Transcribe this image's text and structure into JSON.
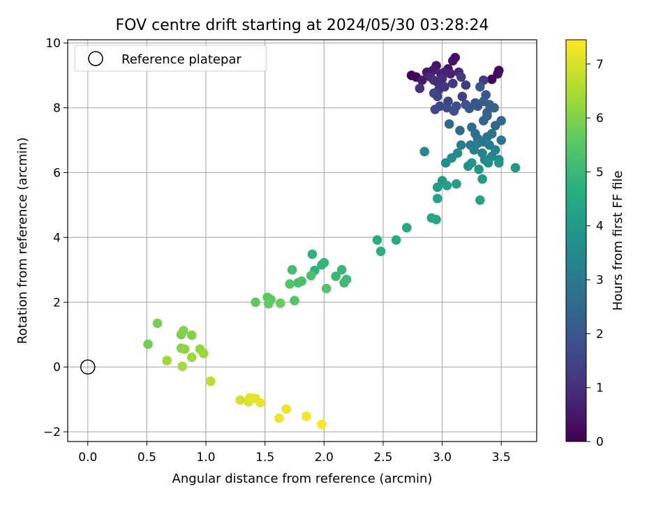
{
  "chart_data": {
    "type": "scatter",
    "title": "FOV centre drift starting at 2024/05/30 03:28:24",
    "xlabel": "Angular distance from reference (arcmin)",
    "ylabel": "Rotation from reference (arcmin)",
    "xlim": [
      -0.17,
      3.8
    ],
    "ylim": [
      -2.3,
      10.1
    ],
    "xticks": [
      0.0,
      0.5,
      1.0,
      1.5,
      2.0,
      2.5,
      3.0,
      3.5
    ],
    "xtick_labels": [
      "0.0",
      "0.5",
      "1.0",
      "1.5",
      "2.0",
      "2.5",
      "3.0",
      "3.5"
    ],
    "yticks": [
      -2,
      0,
      2,
      4,
      6,
      8,
      10
    ],
    "ytick_labels": [
      "−2",
      "0",
      "2",
      "4",
      "6",
      "8",
      "10"
    ],
    "grid": true,
    "legend": {
      "placement": "top-left",
      "entries": [
        {
          "label": "Reference platepar",
          "marker": "open-circle",
          "color": "#000000"
        }
      ]
    },
    "reference_point": {
      "x": 0.0,
      "y": 0.0
    },
    "colorbar": {
      "label": "Hours from first FF file",
      "colormap": "viridis",
      "range": [
        0,
        7.45
      ],
      "ticks": [
        0,
        1,
        2,
        3,
        4,
        5,
        6,
        7
      ],
      "tick_labels": [
        "0",
        "1",
        "2",
        "3",
        "4",
        "5",
        "6",
        "7"
      ]
    },
    "series": [
      {
        "points": [
          [
            2.74,
            9.0,
            0.05
          ],
          [
            2.78,
            8.95,
            0.1
          ],
          [
            3.42,
            8.88,
            0.15
          ],
          [
            3.47,
            9.05,
            0.2
          ],
          [
            3.48,
            9.15,
            0.25
          ],
          [
            3.11,
            9.55,
            0.3
          ],
          [
            3.09,
            9.45,
            0.35
          ],
          [
            3.05,
            9.2,
            0.4
          ],
          [
            2.95,
            9.3,
            0.45
          ],
          [
            2.83,
            8.85,
            0.5
          ],
          [
            2.87,
            9.1,
            0.55
          ],
          [
            2.92,
            9.15,
            0.6
          ],
          [
            2.99,
            9.05,
            0.65
          ],
          [
            3.02,
            9.1,
            0.7
          ],
          [
            3.07,
            9.05,
            0.75
          ],
          [
            3.14,
            9.1,
            0.8
          ],
          [
            2.9,
            8.95,
            0.85
          ],
          [
            3.0,
            8.9,
            0.9
          ],
          [
            2.97,
            8.75,
            0.95
          ],
          [
            2.93,
            8.85,
            1.0
          ],
          [
            2.81,
            8.6,
            1.05
          ],
          [
            2.97,
            8.55,
            1.1
          ],
          [
            3.02,
            8.65,
            1.15
          ],
          [
            3.09,
            8.75,
            1.2
          ],
          [
            3.16,
            8.95,
            1.25
          ],
          [
            3.2,
            8.7,
            1.3
          ],
          [
            3.35,
            8.85,
            1.35
          ],
          [
            3.17,
            8.35,
            1.4
          ],
          [
            3.05,
            8.2,
            1.45
          ],
          [
            2.96,
            8.35,
            1.5
          ],
          [
            2.93,
            8.45,
            1.55
          ],
          [
            2.98,
            8.05,
            1.6
          ],
          [
            2.94,
            7.95,
            1.65
          ],
          [
            3.04,
            8.0,
            1.7
          ],
          [
            3.12,
            8.05,
            1.75
          ],
          [
            3.1,
            7.9,
            1.8
          ],
          [
            3.2,
            8.1,
            1.85
          ],
          [
            3.28,
            8.15,
            1.9
          ],
          [
            3.32,
            8.65,
            1.95
          ],
          [
            3.37,
            8.4,
            2.0
          ],
          [
            3.3,
            8.05,
            2.05
          ],
          [
            3.23,
            7.98,
            2.1
          ],
          [
            3.35,
            8.2,
            2.15
          ],
          [
            3.38,
            7.85,
            2.2
          ],
          [
            3.4,
            8.1,
            2.25
          ],
          [
            3.44,
            8.0,
            2.3
          ],
          [
            3.38,
            7.75,
            2.35
          ],
          [
            3.35,
            7.6,
            2.4
          ],
          [
            3.45,
            7.45,
            2.45
          ],
          [
            3.5,
            7.6,
            2.5
          ],
          [
            3.06,
            7.5,
            2.55
          ],
          [
            3.15,
            7.3,
            2.6
          ],
          [
            3.25,
            7.4,
            2.65
          ],
          [
            3.28,
            7.2,
            2.7
          ],
          [
            3.3,
            7.05,
            2.75
          ],
          [
            3.38,
            7.1,
            2.8
          ],
          [
            3.42,
            7.2,
            2.85
          ],
          [
            3.35,
            6.95,
            2.9
          ],
          [
            3.5,
            7.0,
            2.95
          ],
          [
            3.24,
            6.85,
            3.0
          ],
          [
            3.3,
            6.9,
            3.05
          ],
          [
            3.4,
            6.85,
            3.1
          ],
          [
            3.16,
            6.85,
            3.15
          ],
          [
            3.27,
            6.7,
            3.2
          ],
          [
            3.34,
            6.6,
            3.25
          ],
          [
            3.45,
            6.7,
            3.3
          ],
          [
            3.42,
            6.5,
            3.35
          ],
          [
            3.36,
            6.4,
            3.4
          ],
          [
            3.48,
            6.4,
            3.45
          ],
          [
            2.85,
            6.65,
            3.5
          ],
          [
            3.13,
            6.6,
            3.55
          ],
          [
            3.08,
            6.45,
            3.6
          ],
          [
            3.03,
            6.3,
            3.65
          ],
          [
            3.39,
            6.3,
            3.7
          ],
          [
            3.48,
            6.3,
            3.75
          ],
          [
            3.22,
            6.2,
            3.8
          ],
          [
            3.25,
            6.3,
            3.85
          ],
          [
            3.31,
            6.1,
            3.9
          ],
          [
            3.62,
            6.15,
            3.95
          ],
          [
            3.34,
            5.8,
            4.0
          ],
          [
            3.0,
            5.75,
            4.05
          ],
          [
            2.96,
            5.55,
            4.1
          ],
          [
            3.04,
            5.6,
            4.15
          ],
          [
            3.12,
            5.65,
            4.2
          ],
          [
            2.96,
            5.2,
            4.25
          ],
          [
            3.32,
            5.15,
            4.3
          ],
          [
            2.91,
            4.6,
            4.35
          ],
          [
            2.95,
            4.55,
            4.4
          ],
          [
            2.7,
            4.3,
            4.45
          ],
          [
            2.61,
            3.92,
            4.55
          ],
          [
            2.45,
            3.92,
            4.6
          ],
          [
            2.48,
            3.57,
            4.7
          ],
          [
            1.9,
            3.48,
            4.75
          ],
          [
            1.92,
            2.98,
            4.8
          ],
          [
            1.98,
            3.15,
            4.85
          ],
          [
            2.0,
            3.22,
            4.9
          ],
          [
            2.15,
            3.0,
            4.95
          ],
          [
            2.1,
            2.8,
            5.0
          ],
          [
            2.19,
            2.7,
            5.05
          ],
          [
            2.17,
            2.6,
            5.1
          ],
          [
            1.73,
            3.0,
            5.15
          ],
          [
            1.81,
            2.65,
            5.2
          ],
          [
            1.78,
            2.6,
            5.25
          ],
          [
            1.89,
            2.82,
            5.3
          ],
          [
            2.02,
            2.42,
            5.35
          ],
          [
            1.71,
            2.56,
            5.4
          ],
          [
            1.75,
            2.05,
            5.45
          ],
          [
            1.52,
            2.15,
            5.5
          ],
          [
            1.55,
            2.08,
            5.55
          ],
          [
            1.42,
            2.0,
            5.6
          ],
          [
            1.53,
            1.95,
            5.65
          ],
          [
            1.63,
            1.97,
            5.7
          ],
          [
            0.51,
            0.7,
            5.8
          ],
          [
            0.59,
            1.35,
            5.9
          ],
          [
            0.79,
            1.0,
            5.95
          ],
          [
            0.81,
            1.12,
            6.0
          ],
          [
            0.88,
            0.98,
            6.05
          ],
          [
            0.79,
            0.58,
            6.1
          ],
          [
            0.82,
            0.55,
            6.15
          ],
          [
            0.95,
            0.55,
            6.2
          ],
          [
            0.98,
            0.42,
            6.25
          ],
          [
            0.88,
            0.3,
            6.3
          ],
          [
            0.67,
            0.2,
            6.35
          ],
          [
            0.8,
            0.02,
            6.4
          ],
          [
            1.04,
            -0.44,
            6.7
          ],
          [
            1.29,
            -1.02,
            7.0
          ],
          [
            1.36,
            -1.07,
            7.05
          ],
          [
            1.37,
            -0.95,
            7.1
          ],
          [
            1.42,
            -0.97,
            7.15
          ],
          [
            1.46,
            -1.1,
            7.2
          ],
          [
            1.68,
            -1.3,
            7.25
          ],
          [
            1.62,
            -1.58,
            7.3
          ],
          [
            1.85,
            -1.52,
            7.35
          ],
          [
            1.98,
            -1.77,
            7.4
          ]
        ]
      }
    ]
  }
}
